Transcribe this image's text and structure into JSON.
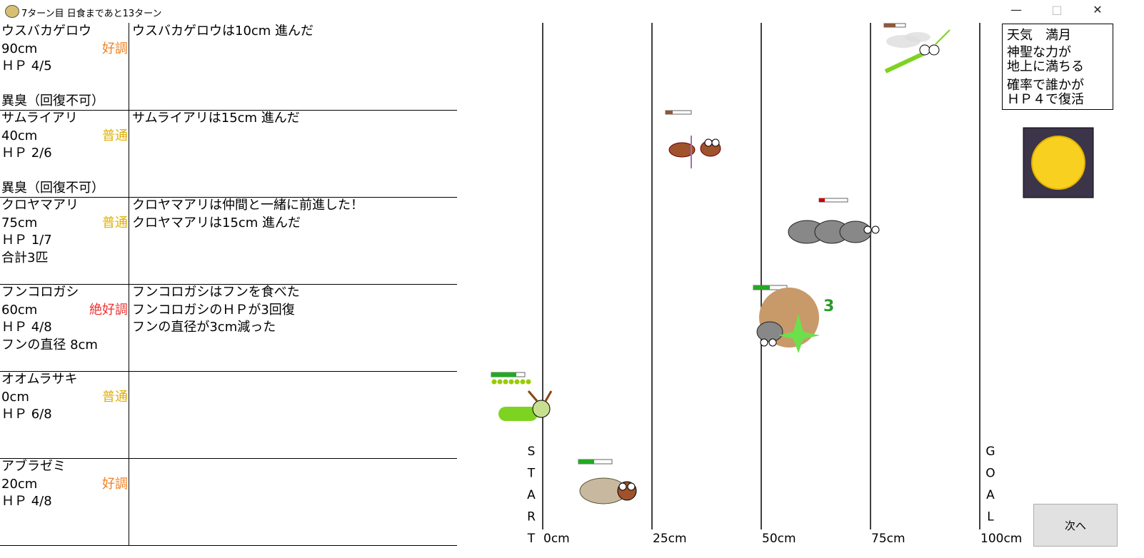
{
  "window": {
    "title": "7ターン目 日食まであと13ターン"
  },
  "insects": [
    {
      "name": "ウスバカゲロウ",
      "distance": "90cm",
      "condition": "好調",
      "condition_color": "#f08020",
      "hp": "ＨＰ 4/5",
      "ailment": "異臭（回復不可）",
      "log": [
        "ウスバカゲロウは10cm 進んだ"
      ]
    },
    {
      "name": "サムライアリ",
      "distance": "40cm",
      "condition": "普通",
      "condition_color": "#e0b000",
      "hp": "ＨＰ 2/6",
      "ailment": "異臭（回復不可）",
      "log": [
        "サムライアリは15cm 進んだ"
      ]
    },
    {
      "name": "クロヤマアリ",
      "distance": "75cm",
      "condition": "普通",
      "condition_color": "#e0b000",
      "hp": "ＨＰ 1/7",
      "status": "合計3匹",
      "log": [
        "クロヤマアリは仲間と一緒に前進した！",
        "クロヤマアリは15cm 進んだ"
      ]
    },
    {
      "name": "フンコロガシ",
      "distance": "60cm",
      "condition": "絶好調",
      "condition_color": "#f03030",
      "hp": "ＨＰ 4/8",
      "status": "フンの直径 8cm",
      "log": [
        "フンコロガシはフンを食べた",
        "フンコロガシのＨＰが3回復",
        "フンの直径が3cm減った"
      ]
    },
    {
      "name": "オオムラサキ",
      "distance": "0cm",
      "condition": "普通",
      "condition_color": "#e0b000",
      "hp": "ＨＰ 6/8",
      "log": []
    },
    {
      "name": "アブラゼミ",
      "distance": "20cm",
      "condition": "好調",
      "condition_color": "#f08020",
      "hp": "ＨＰ 4/8",
      "log": []
    }
  ],
  "effect_count": "3",
  "track": {
    "start": [
      "S",
      "T",
      "A",
      "R",
      "T"
    ],
    "goal": [
      "G",
      "O",
      "A",
      "L"
    ],
    "ticks": [
      "0cm",
      "25cm",
      "50cm",
      "75cm",
      "100cm"
    ]
  },
  "weather": {
    "title": "天気　満月",
    "lines": [
      "神聖な力が",
      "地上に満ちる",
      "確率で誰かが",
      "ＨＰ４で復活"
    ]
  },
  "next_button": "次へ"
}
